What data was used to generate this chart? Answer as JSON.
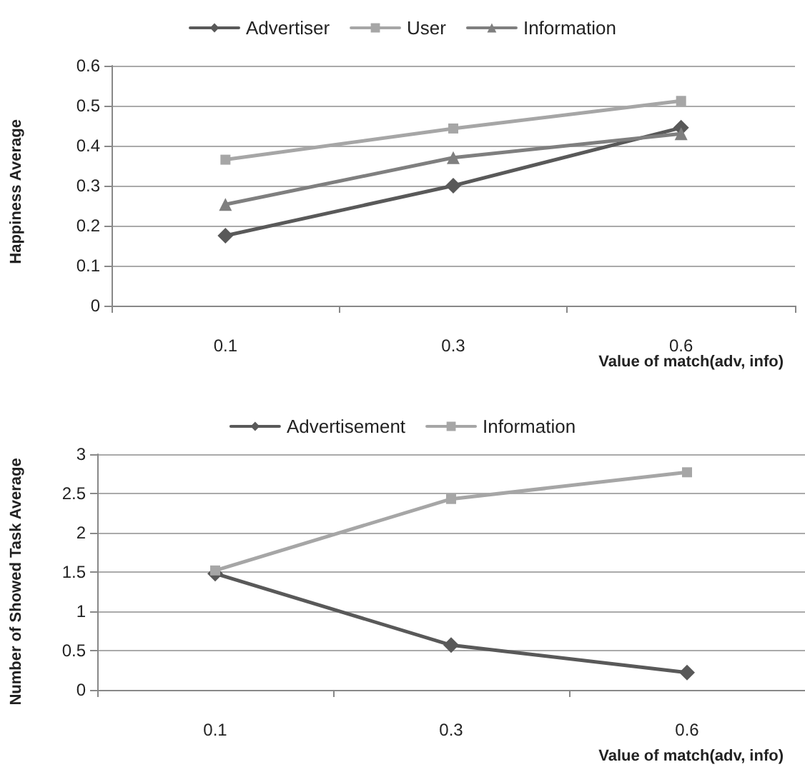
{
  "chart_data": [
    {
      "type": "line",
      "xlabel": "Value of match(adv, info)",
      "ylabel": "Happiness Average",
      "categories": [
        "0.1",
        "0.3",
        "0.6"
      ],
      "series": [
        {
          "name": "Advertiser",
          "color": "#595959",
          "marker": "diamond",
          "values": [
            0.175,
            0.3,
            0.445
          ]
        },
        {
          "name": "User",
          "color": "#a6a6a6",
          "marker": "square",
          "values": [
            0.365,
            0.443,
            0.512
          ]
        },
        {
          "name": "Information",
          "color": "#7f7f7f",
          "marker": "triangle",
          "values": [
            0.253,
            0.37,
            0.43
          ]
        }
      ],
      "ylim": [
        0,
        0.6
      ],
      "yticks": [
        0,
        0.1,
        0.2,
        0.3,
        0.4,
        0.5,
        0.6
      ],
      "grid": "y",
      "legend": "top"
    },
    {
      "type": "line",
      "xlabel": "Value of match(adv, info)",
      "ylabel": "Number of Showed Task Average",
      "categories": [
        "0.1",
        "0.3",
        "0.6"
      ],
      "series": [
        {
          "name": "Advertisement",
          "color": "#595959",
          "marker": "diamond",
          "values": [
            1.48,
            0.57,
            0.22
          ]
        },
        {
          "name": "Information",
          "color": "#a6a6a6",
          "marker": "square",
          "values": [
            1.52,
            2.43,
            2.77
          ]
        }
      ],
      "ylim": [
        0,
        3
      ],
      "yticks": [
        0,
        0.5,
        1,
        1.5,
        2,
        2.5,
        3
      ],
      "grid": "y",
      "legend": "top"
    }
  ]
}
